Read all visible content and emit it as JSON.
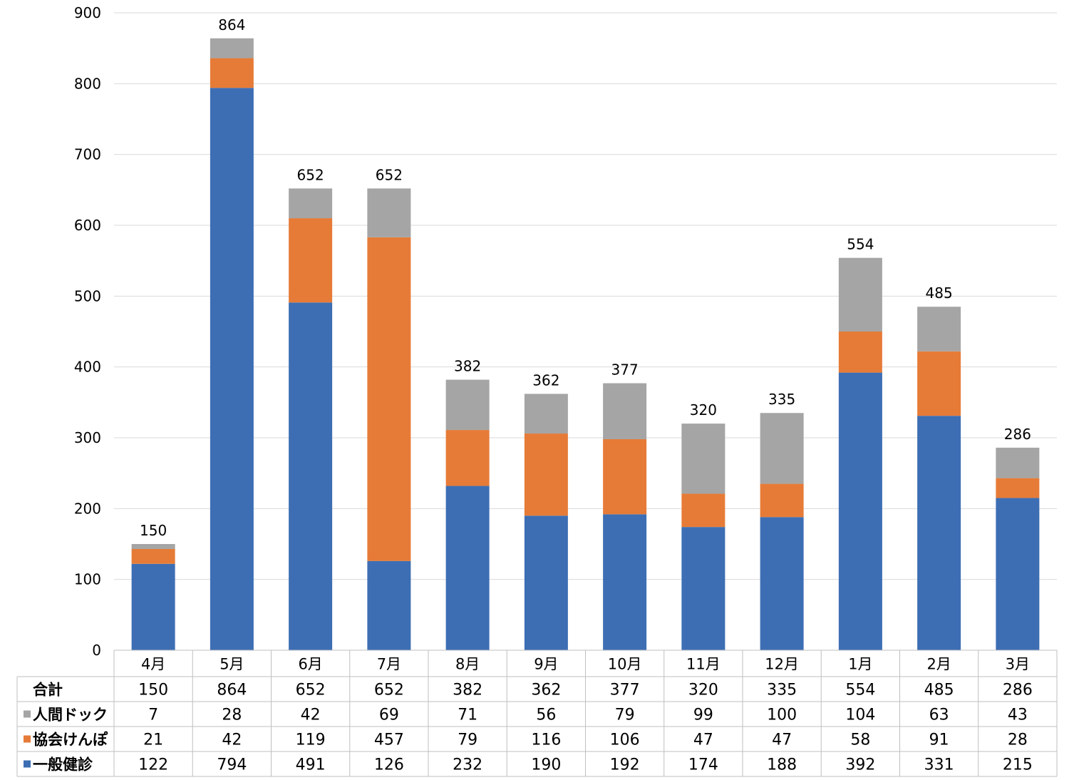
{
  "chart_data": {
    "type": "bar",
    "stacked": true,
    "categories": [
      "4月",
      "5月",
      "6月",
      "7月",
      "8月",
      "9月",
      "10月",
      "11月",
      "12月",
      "1月",
      "2月",
      "3月"
    ],
    "series": [
      {
        "name": "一般健診",
        "color": "#3D6EB4",
        "values": [
          122,
          794,
          491,
          126,
          232,
          190,
          192,
          174,
          188,
          392,
          331,
          215
        ]
      },
      {
        "name": "協会けんぽ",
        "color": "#E67B37",
        "values": [
          21,
          42,
          119,
          457,
          79,
          116,
          106,
          47,
          47,
          58,
          91,
          28
        ]
      },
      {
        "name": "人間ドック",
        "color": "#A5A5A5",
        "values": [
          7,
          28,
          42,
          69,
          71,
          56,
          79,
          99,
          100,
          104,
          63,
          43
        ]
      }
    ],
    "totals": {
      "label": "合計",
      "values": [
        150,
        864,
        652,
        652,
        382,
        362,
        377,
        320,
        335,
        554,
        485,
        286
      ]
    },
    "yticks": [
      0,
      100,
      200,
      300,
      400,
      500,
      600,
      700,
      800,
      900
    ],
    "ylim": [
      0,
      900
    ],
    "grid": true,
    "legend": "data-table-left"
  }
}
